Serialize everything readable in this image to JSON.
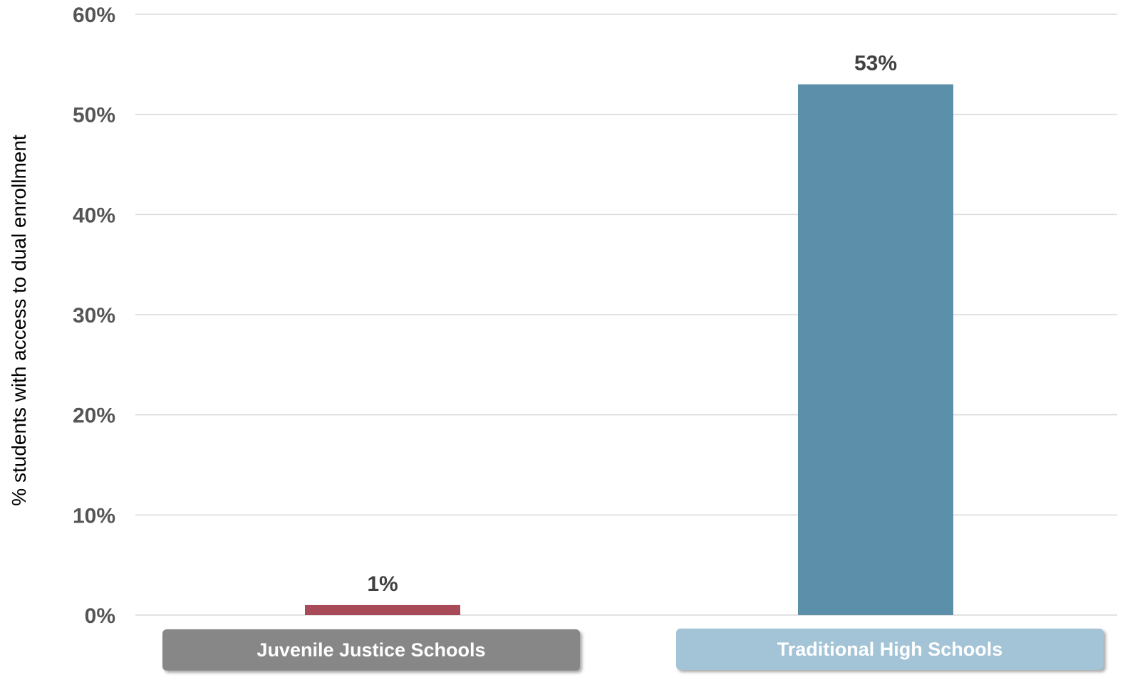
{
  "chart_data": {
    "type": "bar",
    "categories": [
      "Juvenile Justice Schools",
      "Traditional High Schools"
    ],
    "values": [
      1,
      53
    ],
    "data_labels": [
      "1%",
      "53%"
    ],
    "title": "",
    "xlabel": "",
    "ylabel": "% students with access to dual enrollment",
    "ylim": [
      0,
      60
    ],
    "yticks": [
      0,
      10,
      20,
      30,
      40,
      50,
      60
    ],
    "ytick_labels": [
      "0%",
      "10%",
      "20%",
      "30%",
      "40%",
      "50%",
      "60%"
    ],
    "grid": true,
    "legend": "none",
    "bar_colors": [
      "#A84A58",
      "#5B8FAA"
    ],
    "category_box_colors": [
      "#878787",
      "#A3C3D6"
    ]
  }
}
